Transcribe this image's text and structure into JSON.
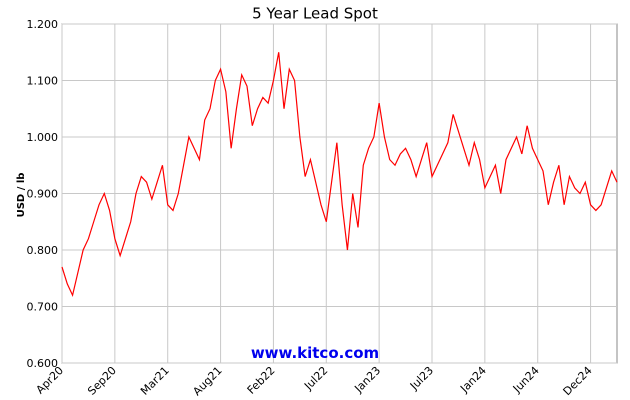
{
  "chart_data": {
    "type": "line",
    "title": "5 Year Lead Spot",
    "y_label": "USD / lb",
    "watermark": "www.kitco.com",
    "categories": [
      "Apr20",
      null,
      null,
      null,
      null,
      null,
      null,
      null,
      null,
      null,
      "Sep20",
      null,
      null,
      null,
      null,
      null,
      null,
      null,
      null,
      null,
      "Mar21",
      null,
      null,
      null,
      null,
      null,
      null,
      null,
      null,
      null,
      "Aug21",
      null,
      null,
      null,
      null,
      null,
      null,
      null,
      null,
      null,
      "Feb22",
      null,
      null,
      null,
      null,
      null,
      null,
      null,
      null,
      null,
      "Jul22",
      null,
      null,
      null,
      null,
      null,
      null,
      null,
      null,
      null,
      "Jan23",
      null,
      null,
      null,
      null,
      null,
      null,
      null,
      null,
      null,
      "Jul23",
      null,
      null,
      null,
      null,
      null,
      null,
      null,
      null,
      null,
      "Jan24",
      null,
      null,
      null,
      null,
      null,
      null,
      null,
      null,
      null,
      "Jun24",
      null,
      null,
      null,
      null,
      null,
      null,
      null,
      null,
      null,
      "Dec24",
      null,
      null,
      null,
      null,
      null
    ],
    "series": [
      {
        "color": "#ff0000",
        "values": [
          0.77,
          0.74,
          0.72,
          0.76,
          0.8,
          0.82,
          0.85,
          0.88,
          0.9,
          0.87,
          0.82,
          0.79,
          0.82,
          0.85,
          0.9,
          0.93,
          0.92,
          0.89,
          0.92,
          0.95,
          0.88,
          0.87,
          0.9,
          0.95,
          1.0,
          0.98,
          0.96,
          1.03,
          1.05,
          1.1,
          1.12,
          1.08,
          0.98,
          1.05,
          1.11,
          1.09,
          1.02,
          1.05,
          1.07,
          1.06,
          1.1,
          1.15,
          1.05,
          1.12,
          1.1,
          1.0,
          0.93,
          0.96,
          0.92,
          0.88,
          0.85,
          0.92,
          0.99,
          0.88,
          0.8,
          0.9,
          0.84,
          0.95,
          0.98,
          1.0,
          1.06,
          1.0,
          0.96,
          0.95,
          0.97,
          0.98,
          0.96,
          0.93,
          0.96,
          0.99,
          0.93,
          0.95,
          0.97,
          0.99,
          1.04,
          1.01,
          0.98,
          0.95,
          0.99,
          0.96,
          0.91,
          0.93,
          0.95,
          0.9,
          0.96,
          0.98,
          1.0,
          0.97,
          1.02,
          0.98,
          0.96,
          0.94,
          0.88,
          0.92,
          0.95,
          0.88,
          0.93,
          0.91,
          0.9,
          0.92,
          0.88,
          0.87,
          0.88,
          0.91,
          0.94,
          0.92
        ]
      }
    ],
    "ylim": [
      0.6,
      1.2
    ],
    "yticks": [
      {
        "value": 0.6,
        "label": "0.600"
      },
      {
        "value": 0.7,
        "label": "0.700"
      },
      {
        "value": 0.8,
        "label": "0.800"
      },
      {
        "value": 0.9,
        "label": "0.900"
      },
      {
        "value": 1.0,
        "label": "1.000"
      },
      {
        "value": 1.1,
        "label": "1.100"
      },
      {
        "value": 1.2,
        "label": "1.200"
      }
    ],
    "grid": true
  }
}
